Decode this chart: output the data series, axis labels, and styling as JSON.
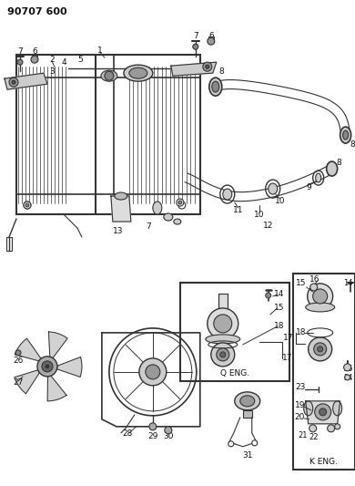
{
  "title": "90707 600",
  "bg_color": "#ffffff",
  "line_color": "#333333",
  "text_color": "#111111",
  "fig_width": 3.9,
  "fig_height": 5.33,
  "dpi": 100
}
